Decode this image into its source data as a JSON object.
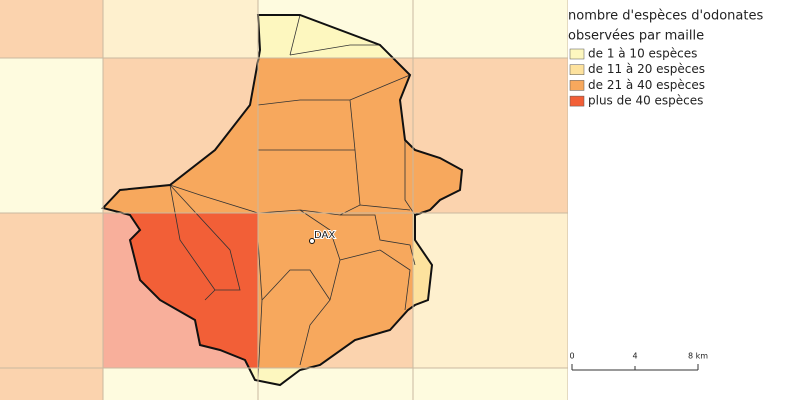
{
  "legend": {
    "title": [
      "nombre d'espèces d'odonates",
      "observées par maille"
    ],
    "items": [
      {
        "label": "de 1 à 10 espèces",
        "color": "#fdf7bf"
      },
      {
        "label": "de 11 à 20 espèces",
        "color": "#fde29e"
      },
      {
        "label": "de 21 à 40 espèces",
        "color": "#f7a85d"
      },
      {
        "label": "plus de 40 espèces",
        "color": "#f25f37"
      }
    ]
  },
  "map": {
    "place": "DAX"
  },
  "scale": {
    "labels": [
      "0",
      "4",
      "8 km"
    ]
  }
}
